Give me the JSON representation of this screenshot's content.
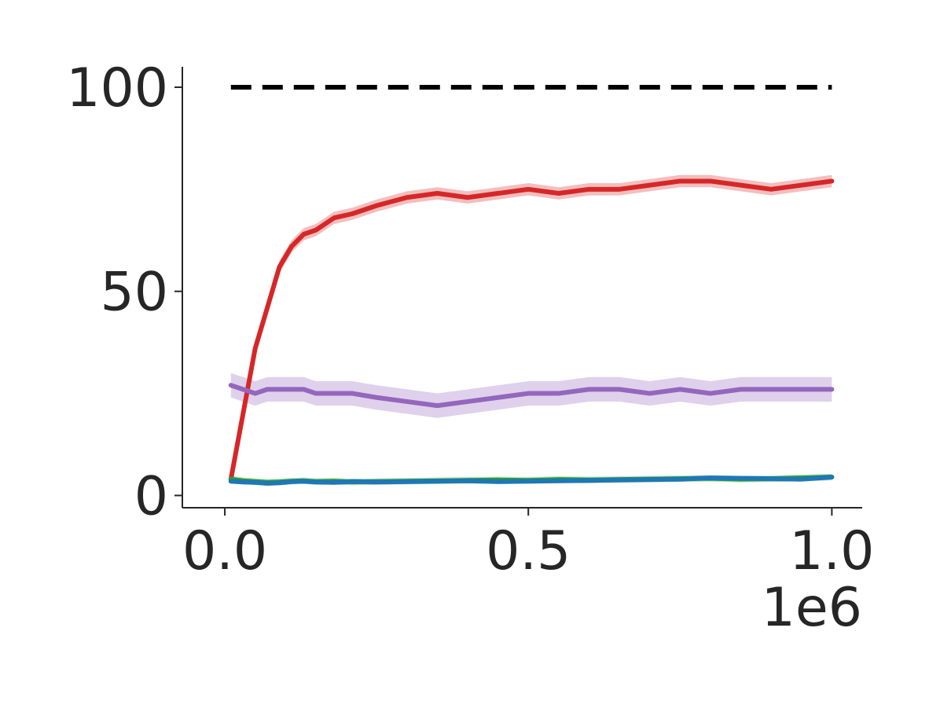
{
  "chart_data": {
    "type": "line",
    "title": "",
    "xlabel": "",
    "ylabel": "",
    "x_offset_label": "1e6",
    "xlim": [
      -0.07,
      1.05
    ],
    "ylim": [
      -3,
      105
    ],
    "x_ticks": [
      {
        "value": 0.0,
        "label": "0.0"
      },
      {
        "value": 0.5,
        "label": "0.5"
      },
      {
        "value": 1.0,
        "label": "1.0"
      }
    ],
    "y_ticks": [
      {
        "value": 0,
        "label": "0"
      },
      {
        "value": 50,
        "label": "50"
      },
      {
        "value": 100,
        "label": "100"
      }
    ],
    "grid": false,
    "legend": "none",
    "reference_line": {
      "y": 100,
      "x_range": [
        0.01,
        1.0
      ],
      "color": "#000000",
      "style": "dashed"
    },
    "x": [
      0.01,
      0.03,
      0.05,
      0.07,
      0.09,
      0.11,
      0.13,
      0.15,
      0.18,
      0.21,
      0.25,
      0.3,
      0.35,
      0.4,
      0.45,
      0.5,
      0.55,
      0.6,
      0.65,
      0.7,
      0.75,
      0.8,
      0.85,
      0.9,
      0.95,
      1.0
    ],
    "series": [
      {
        "color": "#d62728",
        "values": [
          4,
          20,
          36,
          46,
          56,
          61,
          64,
          65,
          68,
          69,
          71,
          73,
          74,
          73,
          74,
          75,
          74,
          75,
          75,
          76,
          77,
          77,
          76,
          75,
          76,
          77
        ],
        "band": 1.5
      },
      {
        "color": "#9467bd",
        "values": [
          27,
          26,
          25,
          26,
          26,
          26,
          26,
          25,
          25,
          25,
          24,
          23,
          22,
          23,
          24,
          25,
          25,
          26,
          26,
          25,
          26,
          25,
          26,
          26,
          26,
          26
        ],
        "band": 3
      },
      {
        "color": "#2ca02c",
        "values": [
          4,
          3.6,
          3.4,
          3.2,
          3.3,
          3.5,
          3.6,
          3.4,
          3.5,
          3.3,
          3.4,
          3.5,
          3.6,
          3.7,
          3.8,
          3.7,
          3.9,
          3.8,
          3.9,
          4.0,
          4.1,
          4.2,
          4.0,
          4.1,
          4.3,
          4.5
        ],
        "band": 0.8
      },
      {
        "color": "#1f77b4",
        "values": [
          3.5,
          3.3,
          3.2,
          3.0,
          3.1,
          3.4,
          3.5,
          3.3,
          3.2,
          3.4,
          3.3,
          3.4,
          3.5,
          3.6,
          3.4,
          3.5,
          3.6,
          3.7,
          3.8,
          3.9,
          4.0,
          4.3,
          4.2,
          4.1,
          4.0,
          4.5
        ],
        "band": 0.6
      }
    ]
  }
}
